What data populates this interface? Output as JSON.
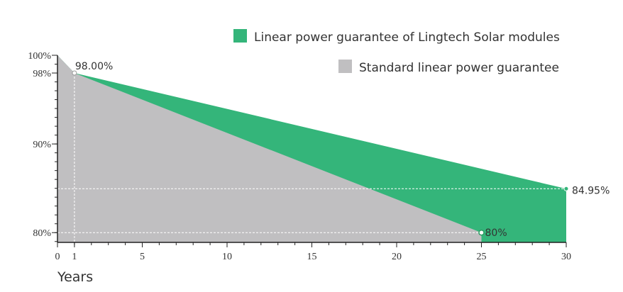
{
  "chart_data": {
    "type": "area",
    "xlabel": "Years",
    "ylabel": "",
    "xlim": [
      0,
      30
    ],
    "ylim": [
      78.9,
      100
    ],
    "x_ticks": [
      0,
      1,
      5,
      10,
      15,
      20,
      25,
      30
    ],
    "y_ticks": [
      {
        "value": 100,
        "label": "100%"
      },
      {
        "value": 98,
        "label": "98%"
      },
      {
        "value": 90,
        "label": "90%"
      },
      {
        "value": 80,
        "label": "80%"
      }
    ],
    "legend_position": "top-right",
    "series": [
      {
        "name": "Linear power guarantee of Lingtech Solar modules",
        "color": "#34b57a",
        "points": [
          [
            0,
            100
          ],
          [
            1,
            98
          ],
          [
            30,
            84.95
          ]
        ]
      },
      {
        "name": "Standard linear power guarantee",
        "color": "#c0bfc1",
        "points": [
          [
            0,
            100
          ],
          [
            1,
            98
          ],
          [
            25,
            80
          ]
        ]
      }
    ],
    "annotations": [
      {
        "x": 1,
        "y": 98,
        "label": "98.00%"
      },
      {
        "x": 25,
        "y": 80,
        "label": "80%"
      },
      {
        "x": 30,
        "y": 84.95,
        "label": "84.95%"
      }
    ]
  }
}
